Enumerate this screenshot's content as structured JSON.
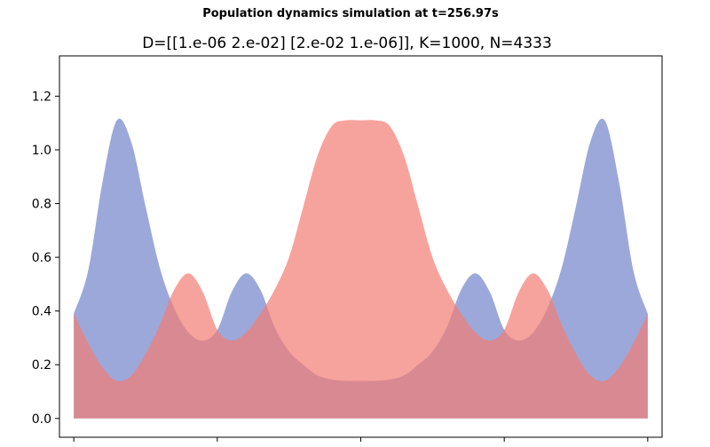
{
  "figure": {
    "suptitle": "Population dynamics simulation at t=256.97s"
  },
  "chart_data": {
    "type": "area",
    "title": "D=[[1.e-06 2.e-02] [2.e-02 1.e-06]], K=1000, N=4333",
    "xlabel": "",
    "ylabel": "",
    "ylim": [
      -0.07,
      1.35
    ],
    "xlim": [
      -0.1,
      4.1
    ],
    "yticks": [
      0.0,
      0.2,
      0.4,
      0.6,
      0.8,
      1.0,
      1.2
    ],
    "ytick_labels": [
      "0.0",
      "0.2",
      "0.4",
      "0.6",
      "0.8",
      "1.0",
      "1.2"
    ],
    "xticks": [
      0,
      1,
      2,
      3,
      4
    ],
    "xtick_labels": [
      "",
      "",
      "",
      "",
      ""
    ],
    "series": [
      {
        "color": "#7b8bcc",
        "opacity": 0.75,
        "x": [
          0.0,
          0.1,
          0.2,
          0.3,
          0.4,
          0.5,
          0.6,
          0.7,
          0.8,
          0.9,
          1.0,
          1.1,
          1.2,
          1.3,
          1.4,
          1.5,
          1.6,
          1.7,
          1.8,
          1.9,
          2.0,
          2.1,
          2.2,
          2.3,
          2.4,
          2.5,
          2.6,
          2.7,
          2.8,
          2.9,
          3.0,
          3.1,
          3.2,
          3.3,
          3.4,
          3.5,
          3.6,
          3.7,
          3.8,
          3.9,
          4.0
        ],
        "values": [
          0.39,
          0.55,
          0.88,
          1.11,
          1.03,
          0.79,
          0.56,
          0.41,
          0.32,
          0.29,
          0.33,
          0.47,
          0.54,
          0.48,
          0.34,
          0.25,
          0.2,
          0.16,
          0.145,
          0.14,
          0.14,
          0.14,
          0.145,
          0.16,
          0.2,
          0.25,
          0.34,
          0.48,
          0.54,
          0.47,
          0.33,
          0.29,
          0.32,
          0.41,
          0.56,
          0.79,
          1.03,
          1.11,
          0.88,
          0.55,
          0.39
        ]
      },
      {
        "color": "#f47c74",
        "opacity": 0.7,
        "x": [
          0.0,
          0.1,
          0.2,
          0.3,
          0.4,
          0.5,
          0.6,
          0.7,
          0.8,
          0.9,
          1.0,
          1.1,
          1.2,
          1.3,
          1.4,
          1.5,
          1.6,
          1.7,
          1.8,
          1.9,
          2.0,
          2.1,
          2.2,
          2.3,
          2.4,
          2.5,
          2.6,
          2.7,
          2.8,
          2.9,
          3.0,
          3.1,
          3.2,
          3.3,
          3.4,
          3.5,
          3.6,
          3.7,
          3.8,
          3.9,
          4.0
        ],
        "values": [
          0.39,
          0.28,
          0.19,
          0.14,
          0.16,
          0.24,
          0.35,
          0.48,
          0.54,
          0.47,
          0.33,
          0.29,
          0.32,
          0.39,
          0.48,
          0.6,
          0.79,
          0.98,
          1.09,
          1.11,
          1.11,
          1.11,
          1.09,
          0.98,
          0.79,
          0.6,
          0.48,
          0.39,
          0.32,
          0.29,
          0.33,
          0.47,
          0.54,
          0.48,
          0.35,
          0.24,
          0.16,
          0.14,
          0.19,
          0.28,
          0.39
        ]
      }
    ],
    "grid": false,
    "legend": "none"
  }
}
